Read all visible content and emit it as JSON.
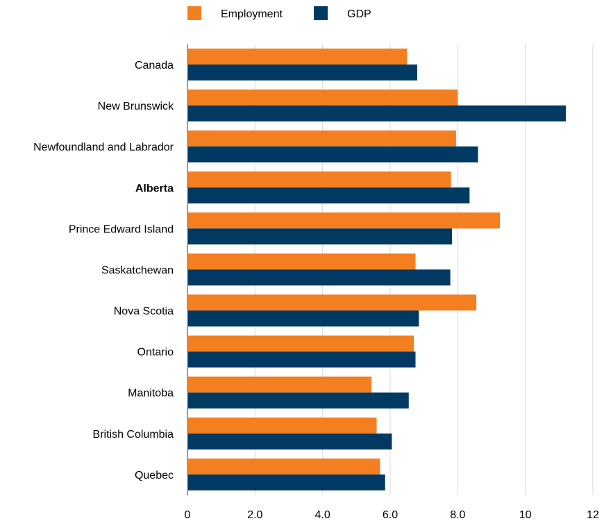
{
  "chart_data": {
    "type": "bar",
    "orientation": "horizontal",
    "categories": [
      "Canada",
      "New Brunswick",
      "Newfoundland and Labrador",
      "Alberta",
      "Prince Edward Island",
      "Saskatchewan",
      "Nova Scotia",
      "Ontario",
      "Manitoba",
      "British Columbia",
      "Quebec"
    ],
    "highlighted_category": "Alberta",
    "series": [
      {
        "name": "Employment",
        "color": "#f47f20",
        "values": [
          6.5,
          8.0,
          7.95,
          7.8,
          9.25,
          6.75,
          8.55,
          6.7,
          5.45,
          5.6,
          5.7
        ]
      },
      {
        "name": "GDP",
        "color": "#003a63",
        "values": [
          6.8,
          11.2,
          8.6,
          8.35,
          7.83,
          7.78,
          6.85,
          6.75,
          6.55,
          6.05,
          5.85
        ]
      }
    ],
    "xlim": [
      0,
      12
    ],
    "xticks": [
      "0",
      "2.0",
      "4.0",
      "6.0",
      "8.0",
      "10",
      "12"
    ],
    "xtick_values": [
      0,
      2,
      4,
      6,
      8,
      10,
      12
    ],
    "grid": true,
    "legend_position": "top-center"
  }
}
